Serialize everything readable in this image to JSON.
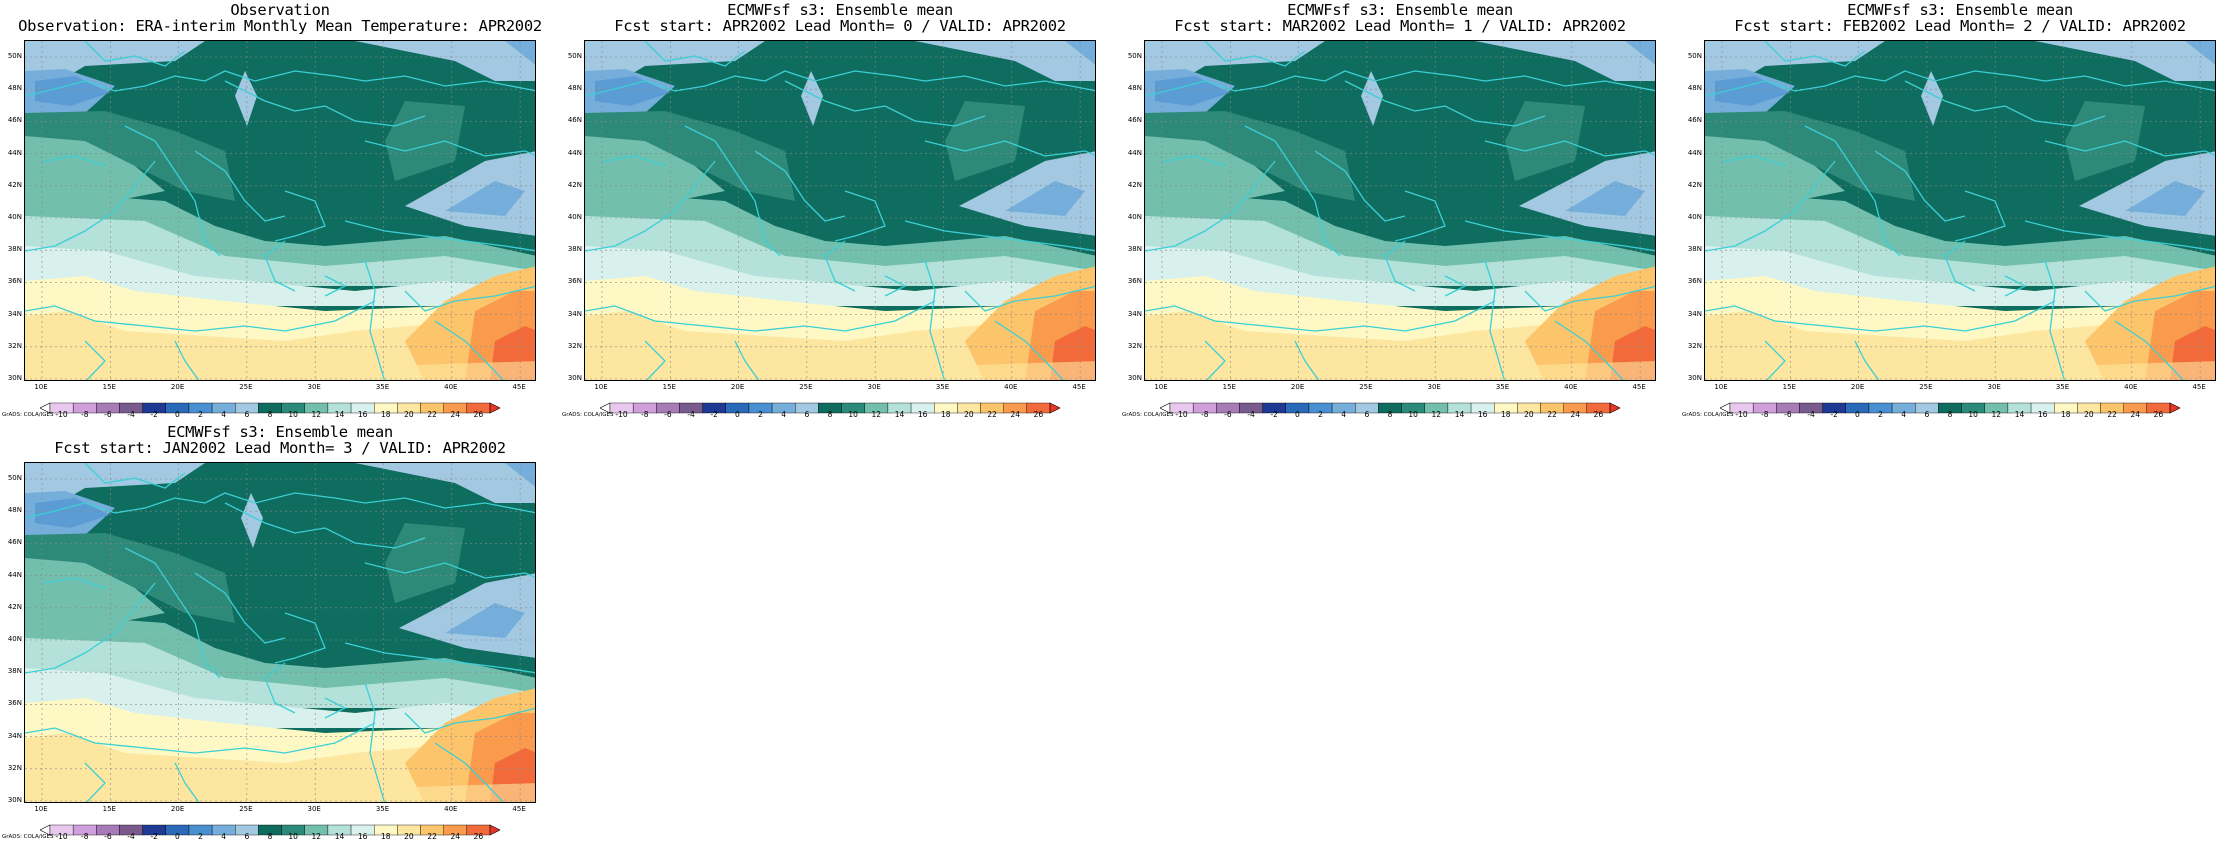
{
  "panels": [
    {
      "title1": "Observation",
      "title2": "Observation: ERA-interim Monthly Mean Temperature: APR2002"
    },
    {
      "title1": "ECMWFsf s3: Ensemble mean",
      "title2": "Fcst start: APR2002  Lead Month= 0 / VALID: APR2002"
    },
    {
      "title1": "ECMWFsf s3: Ensemble mean",
      "title2": "Fcst start: MAR2002  Lead Month= 1 / VALID: APR2002"
    },
    {
      "title1": "ECMWFsf s3: Ensemble mean",
      "title2": "Fcst start: FEB2002  Lead Month= 2 / VALID: APR2002"
    },
    {
      "title1": "ECMWFsf s3: Ensemble mean",
      "title2": "Fcst start: JAN2002  Lead Month= 3 / VALID: APR2002"
    }
  ],
  "lat_labels": [
    "50N",
    "48N",
    "46N",
    "44N",
    "42N",
    "40N",
    "38N",
    "36N",
    "34N",
    "32N",
    "30N"
  ],
  "lon_labels": [
    "10E",
    "15E",
    "20E",
    "25E",
    "30E",
    "35E",
    "40E",
    "45E"
  ],
  "colorbar": {
    "labels": [
      "-10",
      "-8",
      "-6",
      "-4",
      "-2",
      "0",
      "2",
      "4",
      "6",
      "8",
      "10",
      "12",
      "14",
      "16",
      "18",
      "20",
      "22",
      "24",
      "26"
    ],
    "colors": [
      "#ffffff",
      "#e8c8ee",
      "#cf9fdc",
      "#a87ab8",
      "#7a5a8c",
      "#1f3a93",
      "#2a6ab8",
      "#4a8fcf",
      "#76aedb",
      "#a2c9e1",
      "#0e6d5e",
      "#2e8a78",
      "#72bfae",
      "#b4e2da",
      "#d9f1ec",
      "#fef8c4",
      "#fde6a0",
      "#fcc56c",
      "#fa9a4c",
      "#f36a3a",
      "#e8352a"
    ],
    "credit": "GrADS: COLA/IGES"
  },
  "map_colors": {
    "c2": "#4a8fcf",
    "c4": "#76aedb",
    "c6": "#a2c9e1",
    "c8": "#0e6d5e",
    "c10": "#2e8a78",
    "c12": "#72bfae",
    "c14": "#b4e2da",
    "c16": "#d9f1ec",
    "c18": "#fef8c4",
    "c20": "#fde6a0",
    "c22": "#fcc56c",
    "c24": "#fa9a4c",
    "c26": "#f36a3a",
    "coast": "#3ccfd6",
    "grid": "#888888"
  }
}
